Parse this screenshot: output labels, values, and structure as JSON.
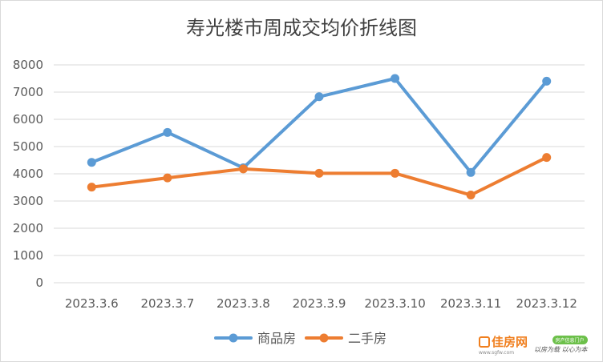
{
  "chart_data": {
    "type": "line",
    "title": "寿光楼市周成交均价折线图",
    "categories": [
      "2023.3.6",
      "2023.3.7",
      "2023.3.8",
      "2023.3.9",
      "2023.3.10",
      "2023.3.11",
      "2023.3.12"
    ],
    "series": [
      {
        "name": "商品房",
        "color": "#5b9bd5",
        "values": [
          4420,
          5520,
          4220,
          6830,
          7500,
          4050,
          7400
        ]
      },
      {
        "name": "二手房",
        "color": "#ed7d31",
        "values": [
          3510,
          3850,
          4180,
          4020,
          4020,
          3220,
          4600
        ]
      }
    ],
    "yticks": [
      0,
      1000,
      2000,
      3000,
      4000,
      5000,
      6000,
      7000,
      8000
    ],
    "ylim": [
      0,
      8000
    ],
    "grid": true,
    "legend_position": "bottom"
  },
  "watermark": {
    "brand": "佳房网",
    "sub": "www.sgfw.com",
    "badge": "房产信息门户",
    "slogan": "以房为载 以心为本"
  }
}
